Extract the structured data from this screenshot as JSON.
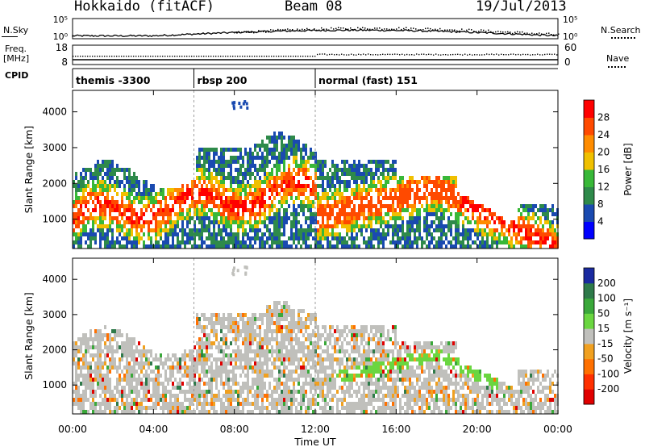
{
  "header": {
    "radar": "Hokkaido (fitACF)",
    "beam": "Beam 08",
    "date": "19/Jul/2013"
  },
  "top_panels": {
    "nsky_label": "N.Sky",
    "nsearch_label": "N.Search",
    "noise_ticks_left": [
      "10^5",
      "10^0"
    ],
    "noise_ticks_right": [
      "10^5",
      "10^0"
    ],
    "freq_label": "Freq.",
    "freq_unit": "[MHz]",
    "freq_ticks": [
      "18",
      "8"
    ],
    "nave_label": "Nave",
    "nave_ticks": [
      "60",
      "0"
    ],
    "cpid_label": "CPID",
    "cpid_segments": [
      {
        "name": "themis -3300",
        "start_hour": 0
      },
      {
        "name": "rbsp 200",
        "start_hour": 6
      },
      {
        "name": "normal (fast) 151",
        "start_hour": 12
      }
    ]
  },
  "chart_data": [
    {
      "type": "heatmap",
      "name": "power",
      "ylabel": "Slant Range [km]",
      "xlabel": "Time UT",
      "x_ticks": [
        "00:00",
        "04:00",
        "08:00",
        "12:00",
        "16:00",
        "20:00",
        "00:00"
      ],
      "y_ticks": [
        "1000",
        "2000",
        "3000",
        "4000"
      ],
      "xlim_hours": [
        0,
        24
      ],
      "ylim_km": [
        180,
        4600
      ],
      "colorbar": {
        "label": "Power [dB]",
        "ticks": [
          "4",
          "8",
          "12",
          "16",
          "20",
          "24",
          "28"
        ],
        "colors": [
          "#0000ff",
          "#1a4ab0",
          "#2e8a4a",
          "#38b838",
          "#f0c000",
          "#ff8c00",
          "#ff4a00",
          "#ff0000"
        ]
      }
    },
    {
      "type": "heatmap",
      "name": "velocity",
      "ylabel": "Slant Range [km]",
      "xlabel": "Time UT",
      "x_ticks": [
        "00:00",
        "04:00",
        "08:00",
        "12:00",
        "16:00",
        "20:00",
        "00:00"
      ],
      "y_ticks": [
        "1000",
        "2000",
        "3000",
        "4000"
      ],
      "xlim_hours": [
        0,
        24
      ],
      "ylim_km": [
        180,
        4600
      ],
      "colorbar": {
        "label": "Velocity [m s^-1]",
        "ticks": [
          "200",
          "100",
          "50",
          "15",
          "-15",
          "-50",
          "-100",
          "-200"
        ],
        "colors": [
          "#1a2aa0",
          "#2e7a4a",
          "#3aa83a",
          "#6ad640",
          "#c0c0bc",
          "#f0a020",
          "#ff7000",
          "#ff3000",
          "#e00000"
        ]
      }
    }
  ],
  "colors": {
    "ground_scatter": "#c0c0bc"
  }
}
